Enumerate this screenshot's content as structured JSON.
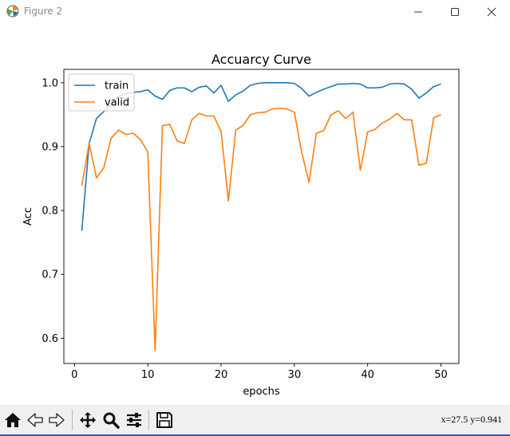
{
  "window": {
    "title": "Figure 2"
  },
  "toolbar": {
    "coords": "x=27.5 y=0.941",
    "buttons": [
      "home-icon",
      "back-arrow-icon",
      "forward-arrow-icon",
      "pan-move-icon",
      "zoom-magnifier-icon",
      "configure-subplots-icon",
      "save-floppy-icon"
    ]
  },
  "chart_data": {
    "type": "line",
    "title": "Accuarcy Curve",
    "xlabel": "epochs",
    "ylabel": "Acc",
    "xlim": [
      -1.45,
      52.45
    ],
    "ylim": [
      0.5605,
      1.021
    ],
    "xticks": [
      0,
      10,
      20,
      30,
      40,
      50
    ],
    "yticks": [
      0.6,
      0.7,
      0.8,
      0.9,
      1.0
    ],
    "xtick_labels": [
      "0",
      "10",
      "20",
      "30",
      "40",
      "50"
    ],
    "ytick_labels": [
      "0.6",
      "0.7",
      "0.8",
      "0.9",
      "1.0"
    ],
    "grid": false,
    "legend": "top-left",
    "x": [
      1,
      2,
      3,
      4,
      5,
      6,
      7,
      8,
      9,
      10,
      11,
      12,
      13,
      14,
      15,
      16,
      17,
      18,
      19,
      20,
      21,
      22,
      23,
      24,
      25,
      26,
      27,
      28,
      29,
      30,
      31,
      32,
      33,
      34,
      35,
      36,
      37,
      38,
      39,
      40,
      41,
      42,
      43,
      44,
      45,
      46,
      47,
      48,
      49,
      50
    ],
    "series": [
      {
        "name": "train",
        "color": "#1f77b4",
        "values": [
          0.768,
          0.905,
          0.944,
          0.955,
          0.966,
          0.978,
          0.983,
          0.985,
          0.986,
          0.989,
          0.979,
          0.974,
          0.988,
          0.992,
          0.992,
          0.986,
          0.993,
          0.995,
          0.984,
          0.996,
          0.971,
          0.981,
          0.987,
          0.996,
          0.999,
          1.0,
          1.0,
          1.0,
          1.0,
          0.999,
          0.991,
          0.979,
          0.985,
          0.99,
          0.994,
          0.998,
          0.998,
          0.999,
          0.998,
          0.992,
          0.992,
          0.993,
          0.998,
          0.999,
          0.998,
          0.99,
          0.976,
          0.984,
          0.994,
          0.998
        ]
      },
      {
        "name": "valid",
        "color": "#ff7f0e",
        "values": [
          0.839,
          0.905,
          0.851,
          0.867,
          0.913,
          0.926,
          0.919,
          0.921,
          0.911,
          0.892,
          0.581,
          0.933,
          0.935,
          0.909,
          0.905,
          0.942,
          0.952,
          0.948,
          0.948,
          0.924,
          0.815,
          0.926,
          0.933,
          0.95,
          0.953,
          0.954,
          0.959,
          0.96,
          0.959,
          0.954,
          0.891,
          0.844,
          0.921,
          0.925,
          0.95,
          0.956,
          0.944,
          0.954,
          0.863,
          0.923,
          0.927,
          0.937,
          0.943,
          0.952,
          0.942,
          0.942,
          0.871,
          0.874,
          0.945,
          0.95
        ]
      }
    ]
  }
}
